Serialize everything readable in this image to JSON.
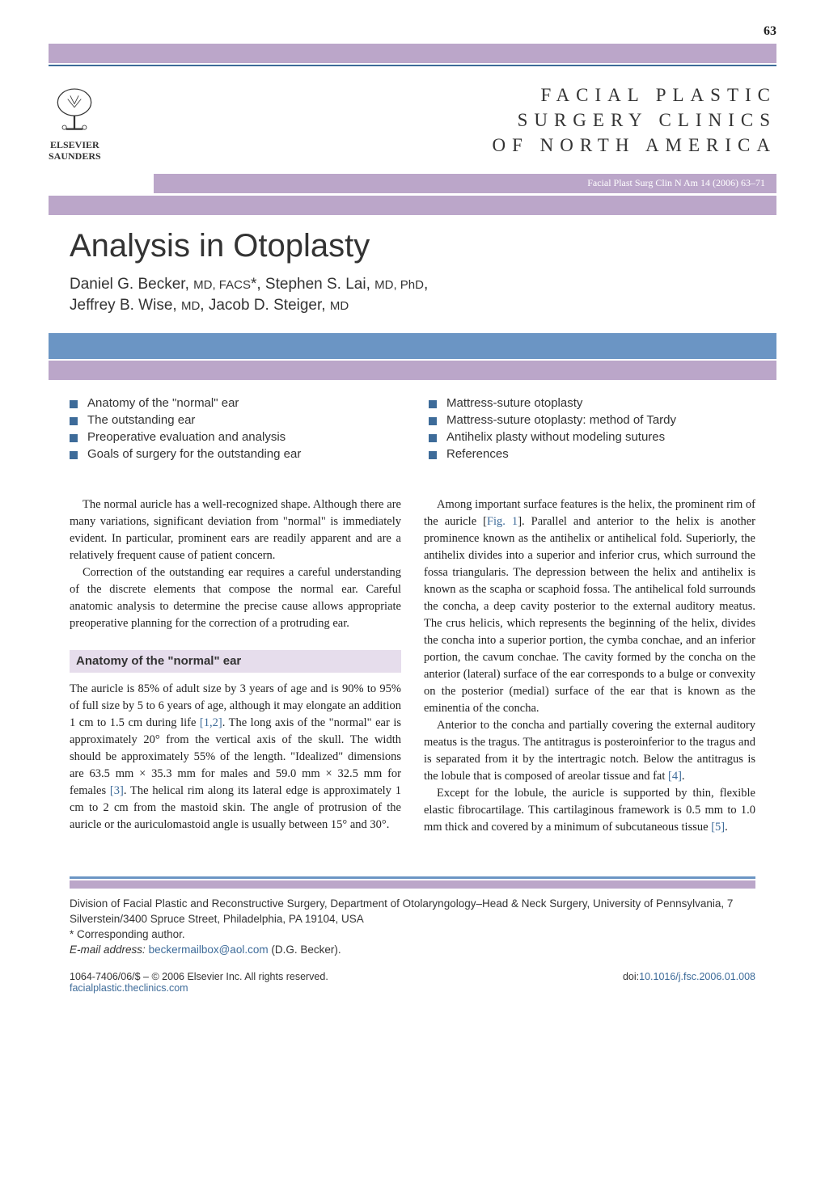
{
  "page_number": "63",
  "publisher": {
    "name_line1": "ELSEVIER",
    "name_line2": "SAUNDERS"
  },
  "journal": {
    "title_line1": "FACIAL PLASTIC",
    "title_line2": "SURGERY CLINICS",
    "title_line3": "OF NORTH AMERICA",
    "citation": "Facial Plast Surg Clin N Am 14 (2006) 63–71"
  },
  "article": {
    "title": "Analysis in Otoplasty",
    "authors_html": "Daniel G. Becker, <span class=\"degree\">MD, FACS</span>*, Stephen S. Lai, <span class=\"degree\">MD, PhD</span>,<br>Jeffrey B. Wise, <span class=\"degree\">MD</span>, Jacob D. Steiger, <span class=\"degree\">MD</span>"
  },
  "contents": {
    "left": [
      "Anatomy of the \"normal\" ear",
      "The outstanding ear",
      "Preoperative evaluation and analysis",
      "Goals of surgery for the outstanding ear"
    ],
    "right": [
      "Mattress-suture otoplasty",
      "Mattress-suture otoplasty: method of Tardy",
      "Antihelix plasty without modeling sutures",
      "References"
    ]
  },
  "body": {
    "col1": {
      "p1": "The normal auricle has a well-recognized shape. Although there are many variations, significant deviation from \"normal\" is immediately evident. In particular, prominent ears are readily apparent and are a relatively frequent cause of patient concern.",
      "p2": "Correction of the outstanding ear requires a careful understanding of the discrete elements that compose the normal ear. Careful anatomic analysis to determine the precise cause allows appropriate preoperative planning for the correction of a protruding ear.",
      "heading1": "Anatomy of the \"normal\" ear",
      "p3_a": "The auricle is 85% of adult size by 3 years of age and is 90% to 95% of full size by 5 to 6 years of age, although it may elongate an addition 1 cm to 1.5 cm during life ",
      "ref12": "[1,2]",
      "p3_b": ". The long axis of the \"normal\" ear is approximately 20° from the vertical axis of the skull. The width should be approximately 55% of the length. \"Idealized\" dimensions are 63.5 mm × 35.3 mm for males and 59.0 mm × 32.5 mm for females ",
      "ref3": "[3]",
      "p3_c": ". The helical rim along its lateral edge is approximately 1 cm to 2 cm from the mastoid skin. The angle of protrusion of the auricle or the auriculomastoid angle is usually between 15° and 30°."
    },
    "col2": {
      "p1_a": "Among important surface features is the helix, the prominent rim of the auricle [",
      "fig1": "Fig. 1",
      "p1_b": "]. Parallel and anterior to the helix is another prominence known as the antihelix or antihelical fold. Superiorly, the antihelix divides into a superior and inferior crus, which surround the fossa triangularis. The depression between the helix and antihelix is known as the scapha or scaphoid fossa. The antihelical fold surrounds the concha, a deep cavity posterior to the external auditory meatus. The crus helicis, which represents the beginning of the helix, divides the concha into a superior portion, the cymba conchae, and an inferior portion, the cavum conchae. The cavity formed by the concha on the anterior (lateral) surface of the ear corresponds to a bulge or convexity on the posterior (medial) surface of the ear that is known as the eminentia of the concha.",
      "p2_a": "Anterior to the concha and partially covering the external auditory meatus is the tragus. The antitragus is posteroinferior to the tragus and is separated from it by the intertragic notch. Below the antitragus is the lobule that is composed of areolar tissue and fat ",
      "ref4": "[4]",
      "p2_b": ".",
      "p3_a": "Except for the lobule, the auricle is supported by thin, flexible elastic fibrocartilage. This cartilaginous framework is 0.5 mm to 1.0 mm thick and covered by a minimum of subcutaneous tissue ",
      "ref5": "[5]",
      "p3_b": "."
    }
  },
  "footer": {
    "affiliation_line1": "Division of Facial Plastic and Reconstructive Surgery, Department of Otolaryngology–Head & Neck Surgery, University of Pennsylvania, 7 Silverstein/3400 Spruce Street, Philadelphia, PA 19104, USA",
    "corresponding": "* Corresponding author.",
    "email_label": "E-mail address:",
    "email": "beckermailbox@aol.com",
    "email_name": "(D.G. Becker).",
    "copyright": "1064-7406/06/$ – © 2006 Elsevier Inc. All rights reserved.",
    "doi_label": "doi:",
    "doi": "10.1016/j.fsc.2006.01.008",
    "website": "facialplastic.theclinics.com"
  },
  "colors": {
    "purple_bar": "#bba6c9",
    "blue_banner": "#6b95c4",
    "thin_line": "#3d6b99",
    "link": "#3d6b99",
    "heading_bg": "#e6ddec",
    "text": "#222222"
  }
}
